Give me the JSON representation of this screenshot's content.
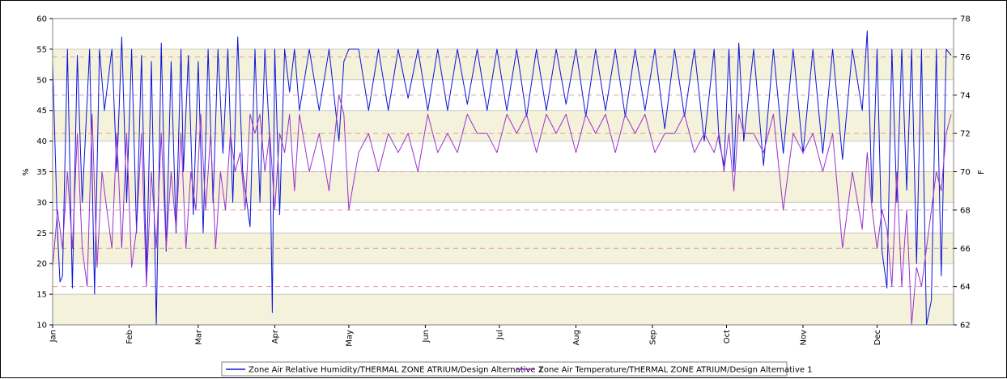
{
  "chart_data": {
    "type": "line",
    "ylabel": "%",
    "y2label": "F",
    "ylim": [
      10,
      60
    ],
    "y_ticks": [
      10,
      15,
      20,
      25,
      30,
      35,
      40,
      45,
      50,
      55,
      60
    ],
    "y2lim": [
      62,
      78
    ],
    "y2_ticks": [
      62,
      64,
      66,
      68,
      70,
      72,
      74,
      76,
      78
    ],
    "x_ticks": [
      "Jan",
      "Feb",
      "Mar",
      "Apr",
      "May",
      "Jun",
      "Jul",
      "Aug",
      "Sep",
      "Oct",
      "Nov",
      "Dec"
    ],
    "x_unit": "day of year",
    "xlim": [
      0,
      365
    ],
    "month_starts": [
      0,
      31,
      59,
      90,
      120,
      151,
      181,
      212,
      243,
      273,
      304,
      334
    ],
    "grid": true,
    "legend_position": "bottom",
    "series": [
      {
        "name": "Zone Air Relative Humidity/THERMAL ZONE ATRIUM/Design Alternative 1",
        "axis": "left",
        "color": "#0a14d8",
        "x": [
          0,
          2,
          3,
          4,
          6,
          8,
          10,
          12,
          15,
          17,
          19,
          21,
          24,
          26,
          28,
          30,
          32,
          34,
          36,
          38,
          40,
          42,
          44,
          46,
          48,
          50,
          52,
          53,
          55,
          57,
          59,
          61,
          63,
          65,
          67,
          69,
          71,
          73,
          75,
          77,
          80,
          82,
          84,
          86,
          88,
          89,
          90,
          92,
          94,
          96,
          98,
          100,
          104,
          108,
          112,
          116,
          118,
          120,
          124,
          128,
          132,
          136,
          140,
          144,
          148,
          152,
          156,
          160,
          164,
          168,
          172,
          176,
          180,
          184,
          188,
          192,
          196,
          200,
          204,
          208,
          212,
          216,
          220,
          224,
          228,
          232,
          236,
          240,
          244,
          248,
          252,
          256,
          260,
          264,
          268,
          270,
          272,
          274,
          276,
          278,
          280,
          284,
          288,
          292,
          296,
          300,
          304,
          308,
          312,
          316,
          320,
          324,
          328,
          330,
          332,
          334,
          336,
          338,
          340,
          342,
          344,
          346,
          348,
          350,
          352,
          354,
          356,
          358,
          360,
          362,
          364
        ],
        "values": [
          53,
          25,
          17,
          18,
          55,
          16,
          54,
          30,
          55,
          15,
          55,
          45,
          55,
          35,
          57,
          30,
          55,
          25,
          54,
          18,
          53,
          10,
          56,
          22,
          53,
          25,
          55,
          35,
          54,
          28,
          53,
          25,
          55,
          30,
          55,
          38,
          55,
          30,
          57,
          35,
          26,
          55,
          30,
          55,
          40,
          12,
          55,
          28,
          55,
          48,
          55,
          45,
          55,
          45,
          55,
          40,
          53,
          55,
          55,
          45,
          55,
          45,
          55,
          47,
          55,
          45,
          55,
          45,
          55,
          46,
          55,
          45,
          55,
          45,
          55,
          44,
          55,
          45,
          55,
          46,
          55,
          44,
          55,
          45,
          55,
          44,
          55,
          45,
          55,
          42,
          55,
          44,
          55,
          40,
          55,
          40,
          36,
          55,
          35,
          56,
          40,
          55,
          36,
          55,
          38,
          55,
          38,
          55,
          38,
          55,
          37,
          55,
          45,
          58,
          30,
          55,
          22,
          16,
          55,
          30,
          55,
          32,
          55,
          20,
          55,
          10,
          14,
          55,
          18,
          55,
          54
        ]
      },
      {
        "name": "Zone Air Temperature/THERMAL ZONE ATRIUM/Design Alternative 1",
        "axis": "right",
        "color": "#9933cc",
        "x": [
          0,
          2,
          4,
          6,
          8,
          10,
          12,
          14,
          16,
          18,
          20,
          22,
          24,
          26,
          28,
          30,
          32,
          34,
          36,
          38,
          40,
          42,
          44,
          46,
          48,
          50,
          52,
          54,
          56,
          58,
          60,
          62,
          64,
          66,
          68,
          70,
          72,
          74,
          76,
          78,
          80,
          82,
          84,
          86,
          88,
          90,
          92,
          94,
          96,
          98,
          100,
          104,
          108,
          112,
          116,
          118,
          120,
          124,
          128,
          132,
          136,
          140,
          144,
          148,
          152,
          156,
          160,
          164,
          168,
          172,
          176,
          180,
          184,
          188,
          192,
          196,
          200,
          204,
          208,
          212,
          216,
          220,
          224,
          228,
          232,
          236,
          240,
          244,
          248,
          252,
          256,
          260,
          264,
          268,
          270,
          272,
          274,
          276,
          278,
          280,
          284,
          288,
          292,
          296,
          300,
          304,
          308,
          312,
          316,
          320,
          324,
          328,
          330,
          332,
          334,
          336,
          338,
          340,
          342,
          344,
          346,
          348,
          350,
          352,
          354,
          356,
          358,
          360,
          362,
          364
        ],
        "values": [
          65,
          68,
          66,
          70,
          66,
          72,
          66,
          64,
          73,
          65,
          70,
          68,
          66,
          72,
          66,
          72,
          65,
          67,
          72,
          64,
          70,
          66,
          72,
          66,
          70,
          67,
          72,
          66,
          70,
          68,
          73,
          68,
          72,
          66,
          70,
          68,
          72,
          70,
          71,
          68,
          73,
          72,
          73,
          70,
          72,
          68,
          72,
          71,
          73,
          69,
          73,
          70,
          72,
          69,
          74,
          73,
          68,
          71,
          72,
          70,
          72,
          71,
          72,
          70,
          73,
          71,
          72,
          71,
          73,
          72,
          72,
          71,
          73,
          72,
          73,
          71,
          73,
          72,
          73,
          71,
          73,
          72,
          73,
          71,
          73,
          72,
          73,
          71,
          72,
          72,
          73,
          71,
          72,
          71,
          72,
          70,
          72,
          69,
          73,
          72,
          72,
          71,
          73,
          68,
          72,
          71,
          72,
          70,
          72,
          66,
          70,
          67,
          71,
          68,
          66,
          68,
          67,
          64,
          70,
          64,
          68,
          62,
          65,
          64,
          66,
          68,
          70,
          69,
          72,
          73
        ]
      }
    ]
  }
}
